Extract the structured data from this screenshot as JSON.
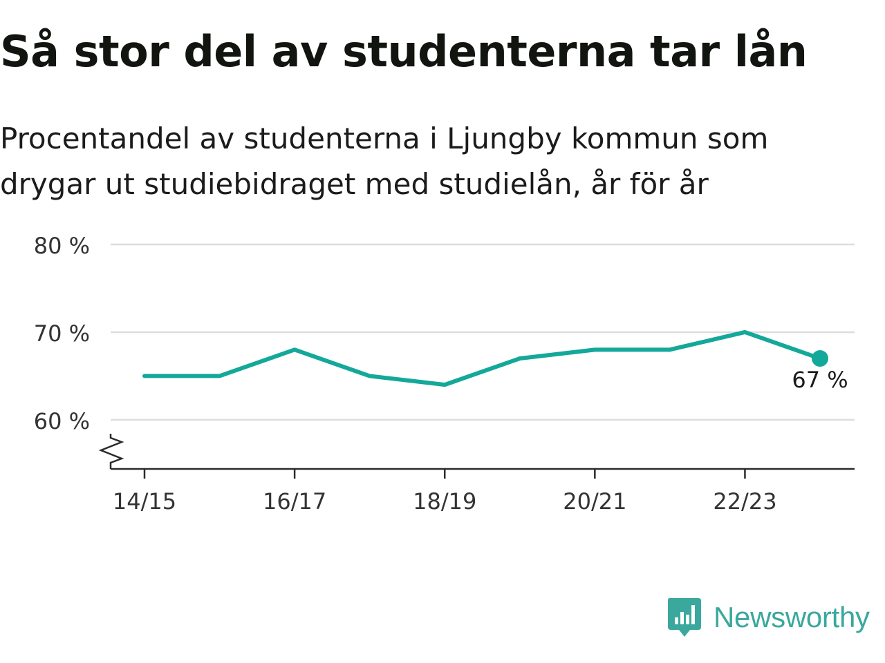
{
  "title": "Så stor del av studenterna tar lån",
  "subtitle": "Procentandel av studenterna i Ljungby kommun som drygar ut studiebidraget med studielån, år för år",
  "brand": {
    "name": "Newsworthy",
    "color": "#3aa89d",
    "icon": "newsworthy-bar-chart-icon"
  },
  "chart_data": {
    "type": "line",
    "x": [
      "14/15",
      "15/16",
      "16/17",
      "17/18",
      "18/19",
      "19/20",
      "20/21",
      "21/22",
      "22/23",
      "23/24"
    ],
    "x_tick_labels": [
      "14/15",
      "16/17",
      "18/19",
      "20/21",
      "22/23"
    ],
    "series": [
      {
        "values": [
          65,
          65,
          68,
          65,
          64,
          67,
          68,
          68,
          70,
          67
        ],
        "color": "#13a89a"
      }
    ],
    "last_value_label": "67 %",
    "y_ticks": [
      60,
      70,
      80
    ],
    "y_tick_labels": [
      "60 %",
      "70 %",
      "80 %"
    ],
    "ylim": [
      54.4,
      80
    ],
    "y_axis_break": true,
    "grid": true,
    "title": "Så stor del av studenterna tar lån",
    "xlabel": "",
    "ylabel": ""
  }
}
